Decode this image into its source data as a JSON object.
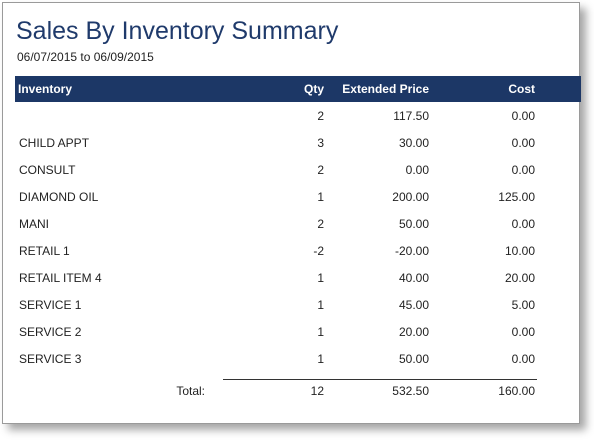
{
  "report": {
    "title": "Sales By Inventory Summary",
    "date_range": "06/07/2015 to 06/09/2015"
  },
  "columns": {
    "inventory": "Inventory",
    "qty": "Qty",
    "extended_price": "Extended Price",
    "cost": "Cost"
  },
  "rows": [
    {
      "inventory": "",
      "qty": "2",
      "extended_price": "117.50",
      "cost": "0.00"
    },
    {
      "inventory": "CHILD APPT",
      "qty": "3",
      "extended_price": "30.00",
      "cost": "0.00"
    },
    {
      "inventory": "CONSULT",
      "qty": "2",
      "extended_price": "0.00",
      "cost": "0.00"
    },
    {
      "inventory": "DIAMOND OIL",
      "qty": "1",
      "extended_price": "200.00",
      "cost": "125.00"
    },
    {
      "inventory": "MANI",
      "qty": "2",
      "extended_price": "50.00",
      "cost": "0.00"
    },
    {
      "inventory": "RETAIL 1",
      "qty": "-2",
      "extended_price": "-20.00",
      "cost": "10.00"
    },
    {
      "inventory": "RETAIL ITEM 4",
      "qty": "1",
      "extended_price": "40.00",
      "cost": "20.00"
    },
    {
      "inventory": "SERVICE 1",
      "qty": "1",
      "extended_price": "45.00",
      "cost": "5.00"
    },
    {
      "inventory": "SERVICE 2",
      "qty": "1",
      "extended_price": "20.00",
      "cost": "0.00"
    },
    {
      "inventory": "SERVICE 3",
      "qty": "1",
      "extended_price": "50.00",
      "cost": "0.00"
    }
  ],
  "totals": {
    "label": "Total:",
    "qty": "12",
    "extended_price": "532.50",
    "cost": "160.00"
  },
  "colors": {
    "header_bg": "#1c3766",
    "title": "#1f3a6b"
  }
}
